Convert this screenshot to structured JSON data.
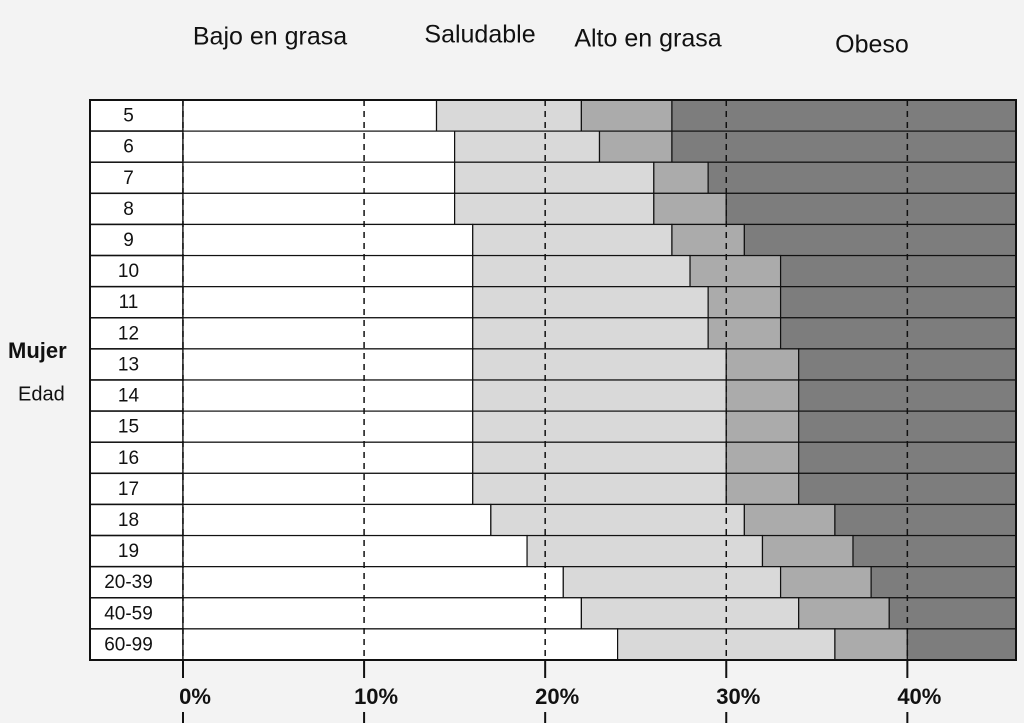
{
  "chart_data": {
    "type": "stacked-barh",
    "label_group": "Mujer",
    "axis_label": "Edad",
    "categories": [
      "5",
      "6",
      "7",
      "8",
      "9",
      "10",
      "11",
      "12",
      "13",
      "14",
      "15",
      "16",
      "17",
      "18",
      "19",
      "20-39",
      "40-59",
      "60-99"
    ],
    "series": [
      {
        "name": "Bajo en grasa",
        "color": "#ffffff",
        "values": [
          14,
          15,
          15,
          15,
          16,
          16,
          16,
          16,
          16,
          16,
          16,
          16,
          16,
          17,
          19,
          21,
          22,
          24
        ]
      },
      {
        "name": "Saludable",
        "color": "#d9d9d9",
        "values": [
          8,
          8,
          11,
          11,
          11,
          12,
          13,
          13,
          14,
          14,
          14,
          14,
          14,
          14,
          13,
          12,
          12,
          12
        ]
      },
      {
        "name": "Alto en grasa",
        "color": "#ababab",
        "values": [
          5,
          4,
          3,
          4,
          4,
          5,
          4,
          4,
          4,
          4,
          4,
          4,
          4,
          5,
          5,
          5,
          5,
          4
        ]
      },
      {
        "name": "Obeso",
        "color": "#7d7d7d",
        "values": [
          19,
          19,
          17,
          16,
          15,
          13,
          13,
          13,
          12,
          12,
          12,
          12,
          12,
          10,
          9,
          8,
          7,
          6
        ]
      }
    ],
    "xlim": [
      0,
      46
    ],
    "xticks": [
      {
        "value": 0,
        "label": "0%"
      },
      {
        "value": 10,
        "label": "10%"
      },
      {
        "value": 20,
        "label": "20%"
      },
      {
        "value": 30,
        "label": "30%"
      },
      {
        "value": 40,
        "label": "40%"
      }
    ],
    "grid": true
  }
}
